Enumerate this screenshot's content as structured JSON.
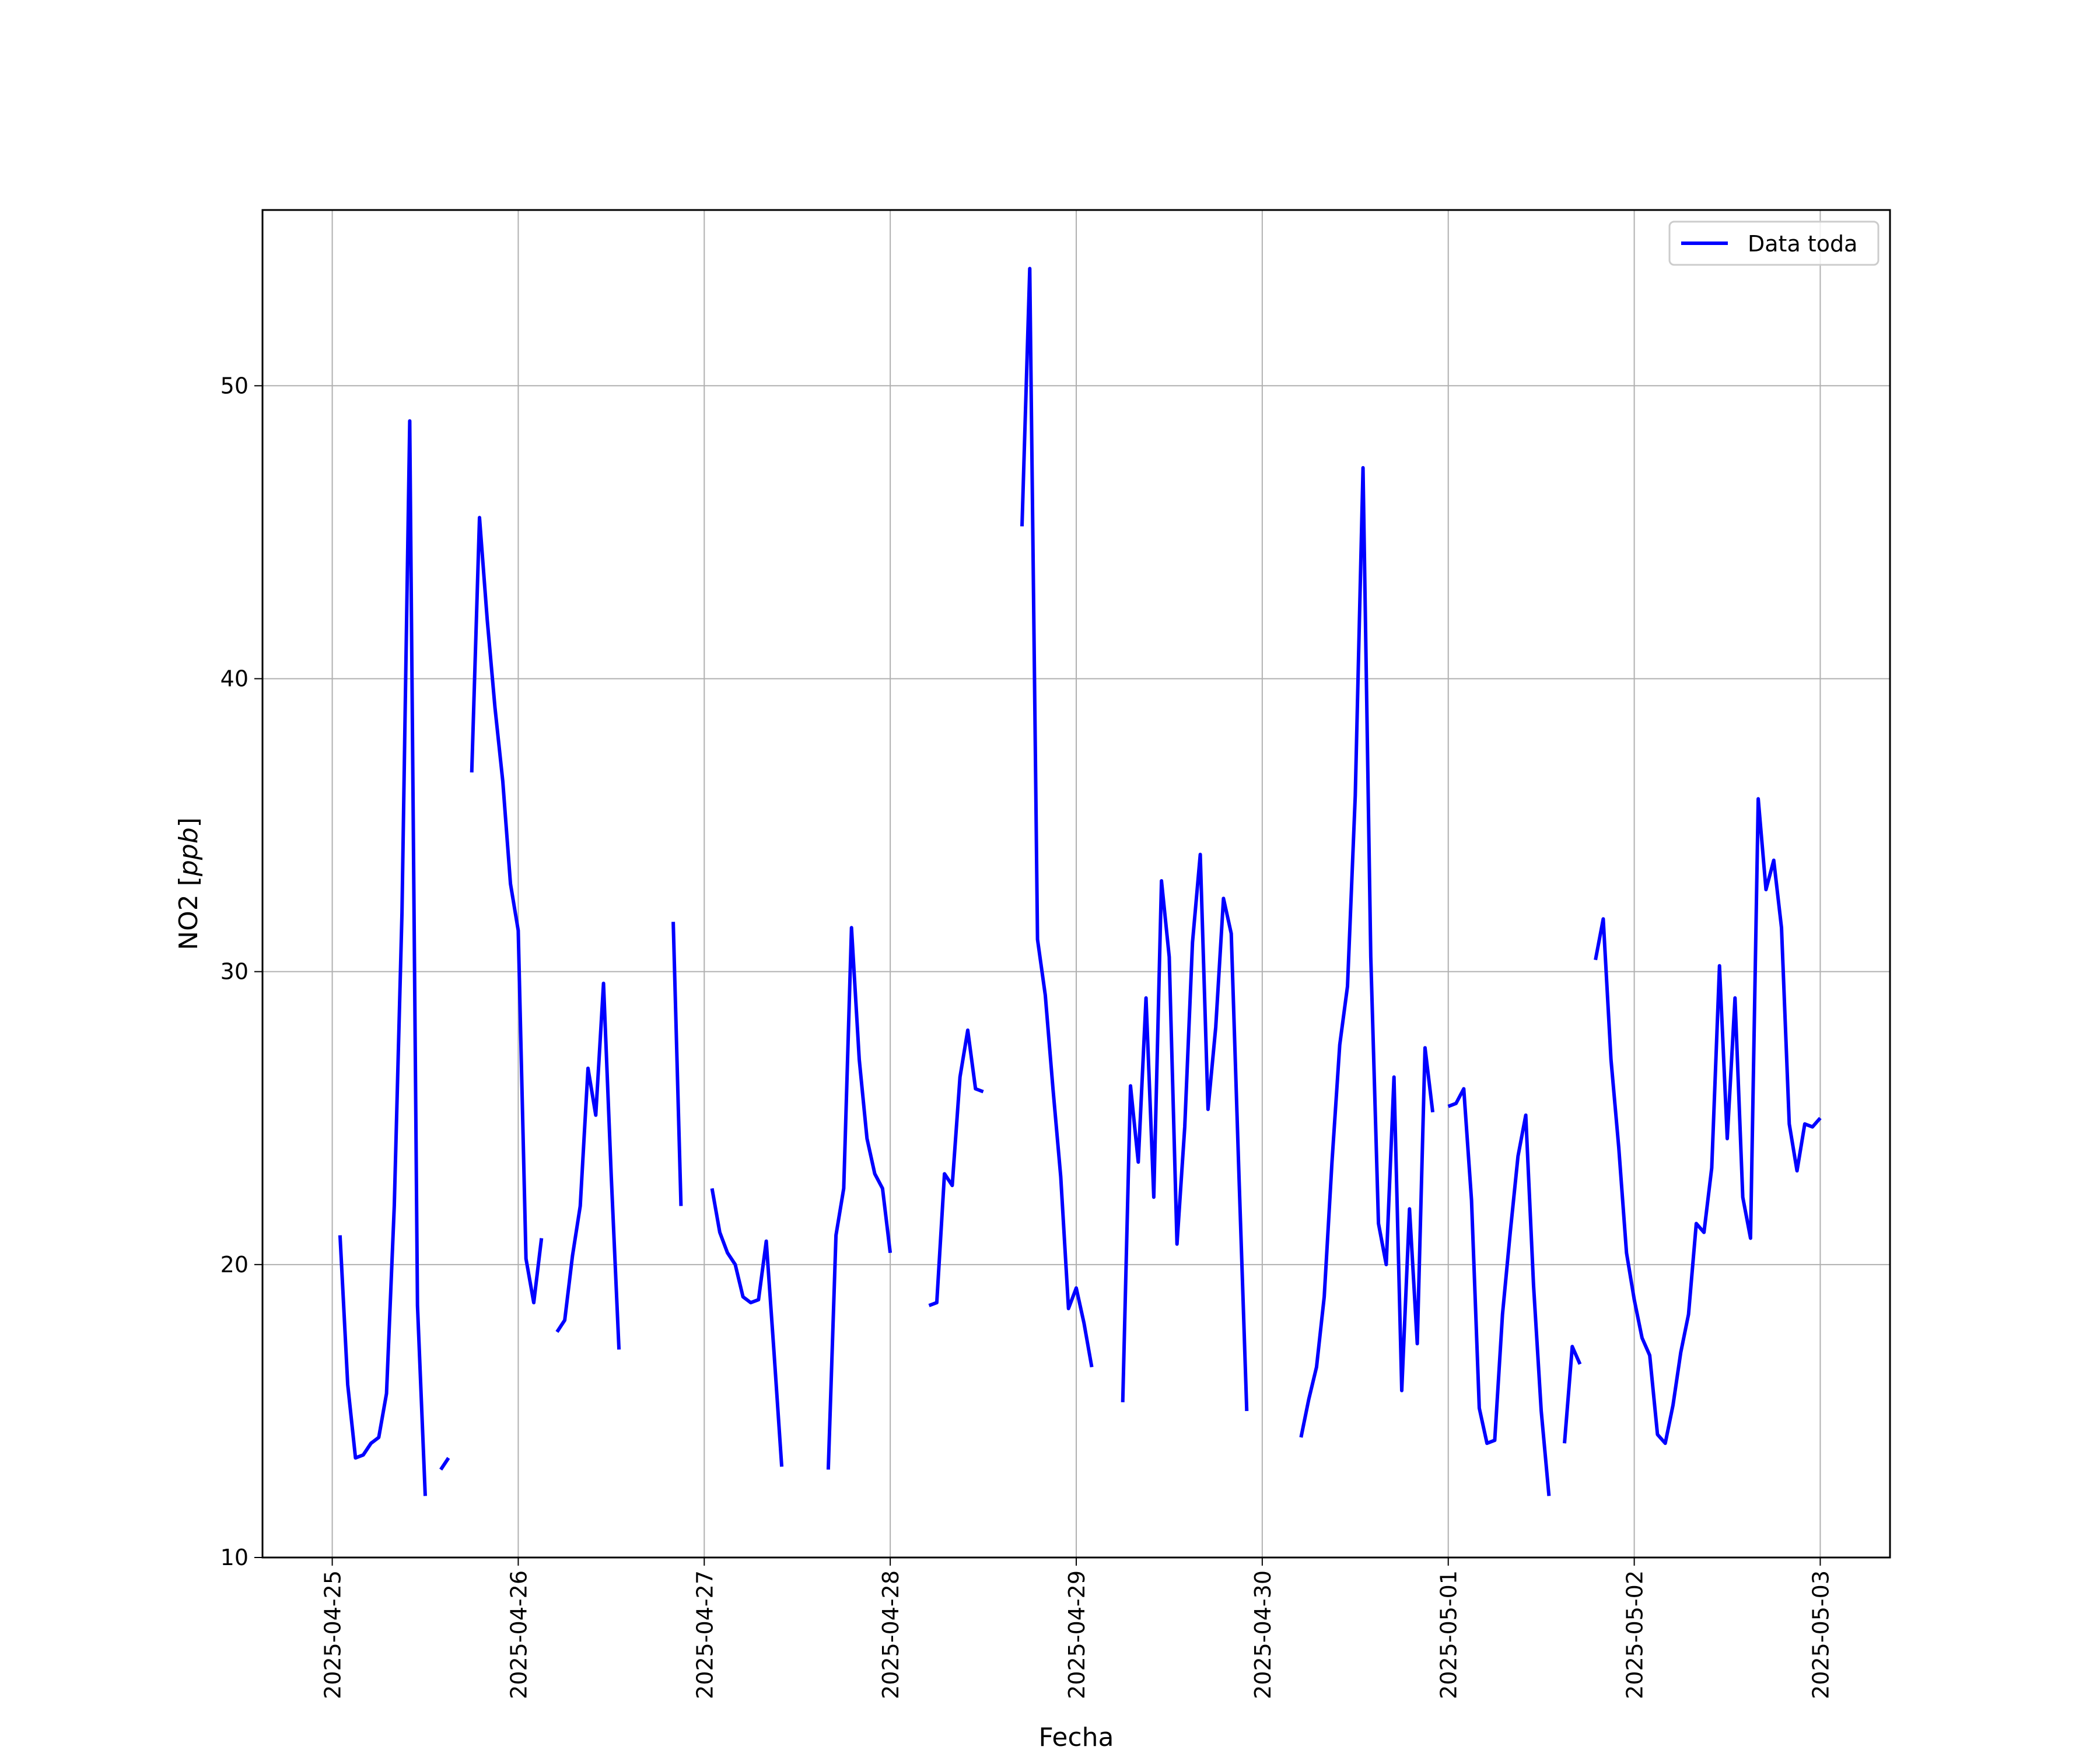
{
  "chart_data": {
    "type": "line",
    "title": "",
    "xlabel": "Fecha",
    "ylabel": "NO2 [ppb]",
    "ylabel_main": "NO2 [",
    "ylabel_unit": "ppb",
    "ylabel_close": "]",
    "ylim": [
      10,
      56
    ],
    "xlim": [
      "2025-04-24 15:00",
      "2025-05-03 09:00"
    ],
    "yticks": [
      10,
      20,
      30,
      40,
      50
    ],
    "xticks": [
      "2025-04-25",
      "2025-04-26",
      "2025-04-27",
      "2025-04-28",
      "2025-04-29",
      "2025-04-30",
      "2025-05-01",
      "2025-05-02",
      "2025-05-03"
    ],
    "grid": true,
    "legend_position": "top-right",
    "line_color": "#0000ff",
    "series": [
      {
        "name": "Data toda",
        "segments": [
          [
            [
              "2025-04-25 01:00",
              21.0
            ],
            [
              "2025-04-25 02:00",
              15.9
            ],
            [
              "2025-04-25 03:00",
              13.4
            ],
            [
              "2025-04-25 04:00",
              13.5
            ],
            [
              "2025-04-25 05:00",
              13.9
            ],
            [
              "2025-04-25 06:00",
              14.1
            ],
            [
              "2025-04-25 07:00",
              15.6
            ],
            [
              "2025-04-25 08:00",
              22.0
            ],
            [
              "2025-04-25 09:00",
              32.0
            ],
            [
              "2025-04-25 10:00",
              48.8
            ],
            [
              "2025-04-25 11:00",
              18.6
            ],
            [
              "2025-04-25 12:00",
              12.1
            ]
          ],
          [
            [
              "2025-04-25 14:00",
              13.0
            ],
            [
              "2025-04-25 15:00",
              13.4
            ]
          ],
          [
            [
              "2025-04-25 18:00",
              36.8
            ],
            [
              "2025-04-25 19:00",
              45.5
            ],
            [
              "2025-04-25 20:00",
              42.0
            ],
            [
              "2025-04-25 21:00",
              39.0
            ],
            [
              "2025-04-25 22:00",
              36.5
            ],
            [
              "2025-04-25 23:00",
              33.0
            ],
            [
              "2025-04-26 00:00",
              31.4
            ],
            [
              "2025-04-26 01:00",
              20.2
            ],
            [
              "2025-04-26 02:00",
              18.7
            ],
            [
              "2025-04-26 03:00",
              20.9
            ]
          ],
          [
            [
              "2025-04-26 05:00",
              17.7
            ],
            [
              "2025-04-26 06:00",
              18.1
            ],
            [
              "2025-04-26 07:00",
              20.3
            ],
            [
              "2025-04-26 08:00",
              22.0
            ],
            [
              "2025-04-26 09:00",
              26.7
            ],
            [
              "2025-04-26 10:00",
              25.1
            ],
            [
              "2025-04-26 11:00",
              29.6
            ],
            [
              "2025-04-26 12:00",
              23.0
            ],
            [
              "2025-04-26 13:00",
              17.1
            ]
          ],
          [
            [
              "2025-04-26 20:00",
              31.7
            ],
            [
              "2025-04-26 21:00",
              22.0
            ]
          ],
          [
            [
              "2025-04-27 01:00",
              22.6
            ],
            [
              "2025-04-27 02:00",
              21.1
            ],
            [
              "2025-04-27 03:00",
              20.4
            ],
            [
              "2025-04-27 04:00",
              20.0
            ],
            [
              "2025-04-27 05:00",
              18.9
            ],
            [
              "2025-04-27 06:00",
              18.7
            ],
            [
              "2025-04-27 07:00",
              18.8
            ],
            [
              "2025-04-27 08:00",
              20.8
            ],
            [
              "2025-04-27 09:00",
              17.0
            ],
            [
              "2025-04-27 10:00",
              13.1
            ]
          ],
          [
            [
              "2025-04-27 16:00",
              13.0
            ],
            [
              "2025-04-27 17:00",
              21.0
            ],
            [
              "2025-04-27 18:00",
              22.6
            ],
            [
              "2025-04-27 19:00",
              31.5
            ],
            [
              "2025-04-27 20:00",
              27.0
            ],
            [
              "2025-04-27 21:00",
              24.3
            ],
            [
              "2025-04-27 22:00",
              23.1
            ],
            [
              "2025-04-27 23:00",
              22.6
            ],
            [
              "2025-04-28 00:00",
              20.4
            ]
          ],
          [
            [
              "2025-04-28 05:00",
              18.6
            ],
            [
              "2025-04-28 06:00",
              18.7
            ],
            [
              "2025-04-28 07:00",
              23.1
            ],
            [
              "2025-04-28 08:00",
              22.7
            ],
            [
              "2025-04-28 09:00",
              26.4
            ],
            [
              "2025-04-28 10:00",
              28.0
            ],
            [
              "2025-04-28 11:00",
              26.0
            ],
            [
              "2025-04-28 12:00",
              25.9
            ]
          ],
          [
            [
              "2025-04-28 17:00",
              45.2
            ],
            [
              "2025-04-28 18:00",
              54.0
            ],
            [
              "2025-04-28 19:00",
              31.1
            ],
            [
              "2025-04-28 20:00",
              29.2
            ],
            [
              "2025-04-28 21:00",
              26.0
            ],
            [
              "2025-04-28 22:00",
              23.0
            ],
            [
              "2025-04-28 23:00",
              18.5
            ],
            [
              "2025-04-29 00:00",
              19.2
            ],
            [
              "2025-04-29 01:00",
              18.0
            ],
            [
              "2025-04-29 02:00",
              16.5
            ]
          ],
          [
            [
              "2025-04-29 06:00",
              15.3
            ],
            [
              "2025-04-29 07:00",
              26.1
            ],
            [
              "2025-04-29 08:00",
              23.5
            ],
            [
              "2025-04-29 09:00",
              29.1
            ],
            [
              "2025-04-29 10:00",
              22.3
            ],
            [
              "2025-04-29 11:00",
              33.1
            ],
            [
              "2025-04-29 12:00",
              30.5
            ],
            [
              "2025-04-29 13:00",
              20.7
            ],
            [
              "2025-04-29 14:00",
              24.7
            ],
            [
              "2025-04-29 15:00",
              31.0
            ],
            [
              "2025-04-29 16:00",
              34.0
            ],
            [
              "2025-04-29 17:00",
              25.3
            ],
            [
              "2025-04-29 18:00",
              28.1
            ],
            [
              "2025-04-29 19:00",
              32.5
            ],
            [
              "2025-04-29 20:00",
              31.3
            ],
            [
              "2025-04-29 21:00",
              23.0
            ],
            [
              "2025-04-29 22:00",
              15.0
            ]
          ],
          [
            [
              "2025-04-30 05:00",
              14.1
            ],
            [
              "2025-04-30 06:00",
              15.4
            ],
            [
              "2025-04-30 07:00",
              16.5
            ],
            [
              "2025-04-30 08:00",
              18.9
            ],
            [
              "2025-04-30 09:00",
              23.5
            ],
            [
              "2025-04-30 10:00",
              27.5
            ],
            [
              "2025-04-30 11:00",
              29.5
            ],
            [
              "2025-04-30 12:00",
              36.0
            ],
            [
              "2025-04-30 13:00",
              47.2
            ],
            [
              "2025-04-30 14:00",
              30.5
            ],
            [
              "2025-04-30 15:00",
              21.4
            ],
            [
              "2025-04-30 16:00",
              20.0
            ],
            [
              "2025-04-30 17:00",
              26.4
            ],
            [
              "2025-04-30 18:00",
              15.7
            ],
            [
              "2025-04-30 19:00",
              21.9
            ],
            [
              "2025-04-30 20:00",
              17.3
            ],
            [
              "2025-04-30 21:00",
              27.4
            ],
            [
              "2025-04-30 22:00",
              25.2
            ]
          ],
          [
            [
              "2025-05-01 00:00",
              25.4
            ],
            [
              "2025-05-01 01:00",
              25.5
            ],
            [
              "2025-05-01 02:00",
              26.0
            ],
            [
              "2025-05-01 03:00",
              22.2
            ],
            [
              "2025-05-01 04:00",
              15.1
            ],
            [
              "2025-05-01 05:00",
              13.9
            ],
            [
              "2025-05-01 06:00",
              14.0
            ],
            [
              "2025-05-01 07:00",
              18.3
            ],
            [
              "2025-05-01 08:00",
              21.1
            ],
            [
              "2025-05-01 09:00",
              23.7
            ],
            [
              "2025-05-01 10:00",
              25.1
            ],
            [
              "2025-05-01 11:00",
              19.3
            ],
            [
              "2025-05-01 12:00",
              15.0
            ],
            [
              "2025-05-01 13:00",
              12.1
            ]
          ],
          [
            [
              "2025-05-01 15:00",
              13.9
            ],
            [
              "2025-05-01 16:00",
              17.2
            ],
            [
              "2025-05-01 17:00",
              16.6
            ]
          ],
          [
            [
              "2025-05-01 19:00",
              30.4
            ],
            [
              "2025-05-01 20:00",
              31.8
            ],
            [
              "2025-05-01 21:00",
              27.0
            ],
            [
              "2025-05-01 22:00",
              24.0
            ],
            [
              "2025-05-01 23:00",
              20.4
            ],
            [
              "2025-05-02 00:00",
              18.8
            ],
            [
              "2025-05-02 01:00",
              17.5
            ],
            [
              "2025-05-02 02:00",
              16.9
            ],
            [
              "2025-05-02 03:00",
              14.2
            ],
            [
              "2025-05-02 04:00",
              13.9
            ],
            [
              "2025-05-02 05:00",
              15.2
            ],
            [
              "2025-05-02 06:00",
              17.0
            ],
            [
              "2025-05-02 07:00",
              18.3
            ],
            [
              "2025-05-02 08:00",
              21.4
            ],
            [
              "2025-05-02 09:00",
              21.1
            ],
            [
              "2025-05-02 10:00",
              23.3
            ],
            [
              "2025-05-02 11:00",
              30.2
            ],
            [
              "2025-05-02 12:00",
              24.3
            ],
            [
              "2025-05-02 13:00",
              29.1
            ],
            [
              "2025-05-02 14:00",
              22.3
            ],
            [
              "2025-05-02 15:00",
              20.9
            ],
            [
              "2025-05-02 16:00",
              35.9
            ],
            [
              "2025-05-02 17:00",
              32.8
            ],
            [
              "2025-05-02 18:00",
              33.8
            ],
            [
              "2025-05-02 19:00",
              31.5
            ],
            [
              "2025-05-02 20:00",
              24.8
            ],
            [
              "2025-05-02 21:00",
              23.2
            ],
            [
              "2025-05-02 22:00",
              24.8
            ],
            [
              "2025-05-02 23:00",
              24.7
            ],
            [
              "2025-05-03 00:00",
              25.0
            ]
          ]
        ]
      }
    ]
  }
}
